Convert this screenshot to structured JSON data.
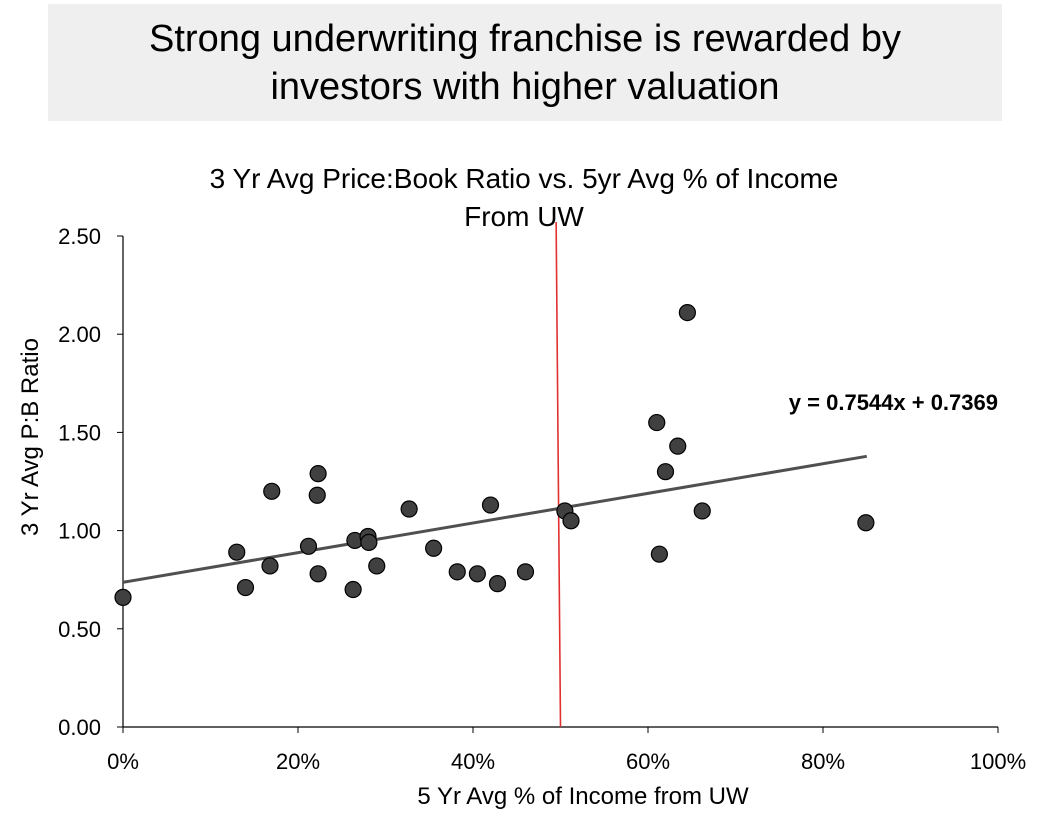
{
  "banner": {
    "title": "Strong underwriting franchise is rewarded by investors with higher valuation"
  },
  "chart_data": {
    "type": "scatter",
    "title_lines": [
      "3 Yr Avg Price:Book Ratio vs. 5yr Avg % of Income",
      "From UW"
    ],
    "xlabel": "5 Yr Avg % of Income from UW",
    "ylabel": "3 Yr Avg P:B Ratio",
    "xlim": [
      0,
      1
    ],
    "ylim": [
      0,
      2.5
    ],
    "x_ticks": [
      0,
      0.2,
      0.4,
      0.6,
      0.8,
      1.0
    ],
    "x_tick_labels": [
      "0%",
      "20%",
      "40%",
      "60%",
      "80%",
      "100%"
    ],
    "y_ticks": [
      0,
      0.5,
      1.0,
      1.5,
      2.0,
      2.5
    ],
    "y_tick_labels": [
      "0.00",
      "0.50",
      "1.00",
      "1.50",
      "2.00",
      "2.50"
    ],
    "grid": false,
    "legend": "none",
    "marker_color": "#404040",
    "trendline": {
      "slope": 0.7544,
      "intercept": 0.7369,
      "x_range": [
        0,
        0.85
      ],
      "label": "y = 0.7544x + 0.7369",
      "color": "#505050"
    },
    "reference_line": {
      "x_bottom": 0.5,
      "x_top": 0.495,
      "color": "#e03030"
    },
    "points": [
      {
        "x": 0.0,
        "y": 0.66
      },
      {
        "x": 0.13,
        "y": 0.89
      },
      {
        "x": 0.14,
        "y": 0.71
      },
      {
        "x": 0.168,
        "y": 0.82
      },
      {
        "x": 0.17,
        "y": 1.2
      },
      {
        "x": 0.212,
        "y": 0.92
      },
      {
        "x": 0.222,
        "y": 1.18
      },
      {
        "x": 0.223,
        "y": 1.29
      },
      {
        "x": 0.223,
        "y": 0.78
      },
      {
        "x": 0.263,
        "y": 0.7
      },
      {
        "x": 0.265,
        "y": 0.95
      },
      {
        "x": 0.28,
        "y": 0.97
      },
      {
        "x": 0.281,
        "y": 0.94
      },
      {
        "x": 0.29,
        "y": 0.82
      },
      {
        "x": 0.327,
        "y": 1.11
      },
      {
        "x": 0.355,
        "y": 0.91
      },
      {
        "x": 0.382,
        "y": 0.79
      },
      {
        "x": 0.405,
        "y": 0.78
      },
      {
        "x": 0.42,
        "y": 1.13
      },
      {
        "x": 0.428,
        "y": 0.73
      },
      {
        "x": 0.46,
        "y": 0.79
      },
      {
        "x": 0.505,
        "y": 1.1
      },
      {
        "x": 0.512,
        "y": 1.05
      },
      {
        "x": 0.61,
        "y": 1.55
      },
      {
        "x": 0.613,
        "y": 0.88
      },
      {
        "x": 0.62,
        "y": 1.3
      },
      {
        "x": 0.634,
        "y": 1.43
      },
      {
        "x": 0.645,
        "y": 2.11
      },
      {
        "x": 0.662,
        "y": 1.1
      },
      {
        "x": 0.849,
        "y": 1.04
      }
    ]
  }
}
